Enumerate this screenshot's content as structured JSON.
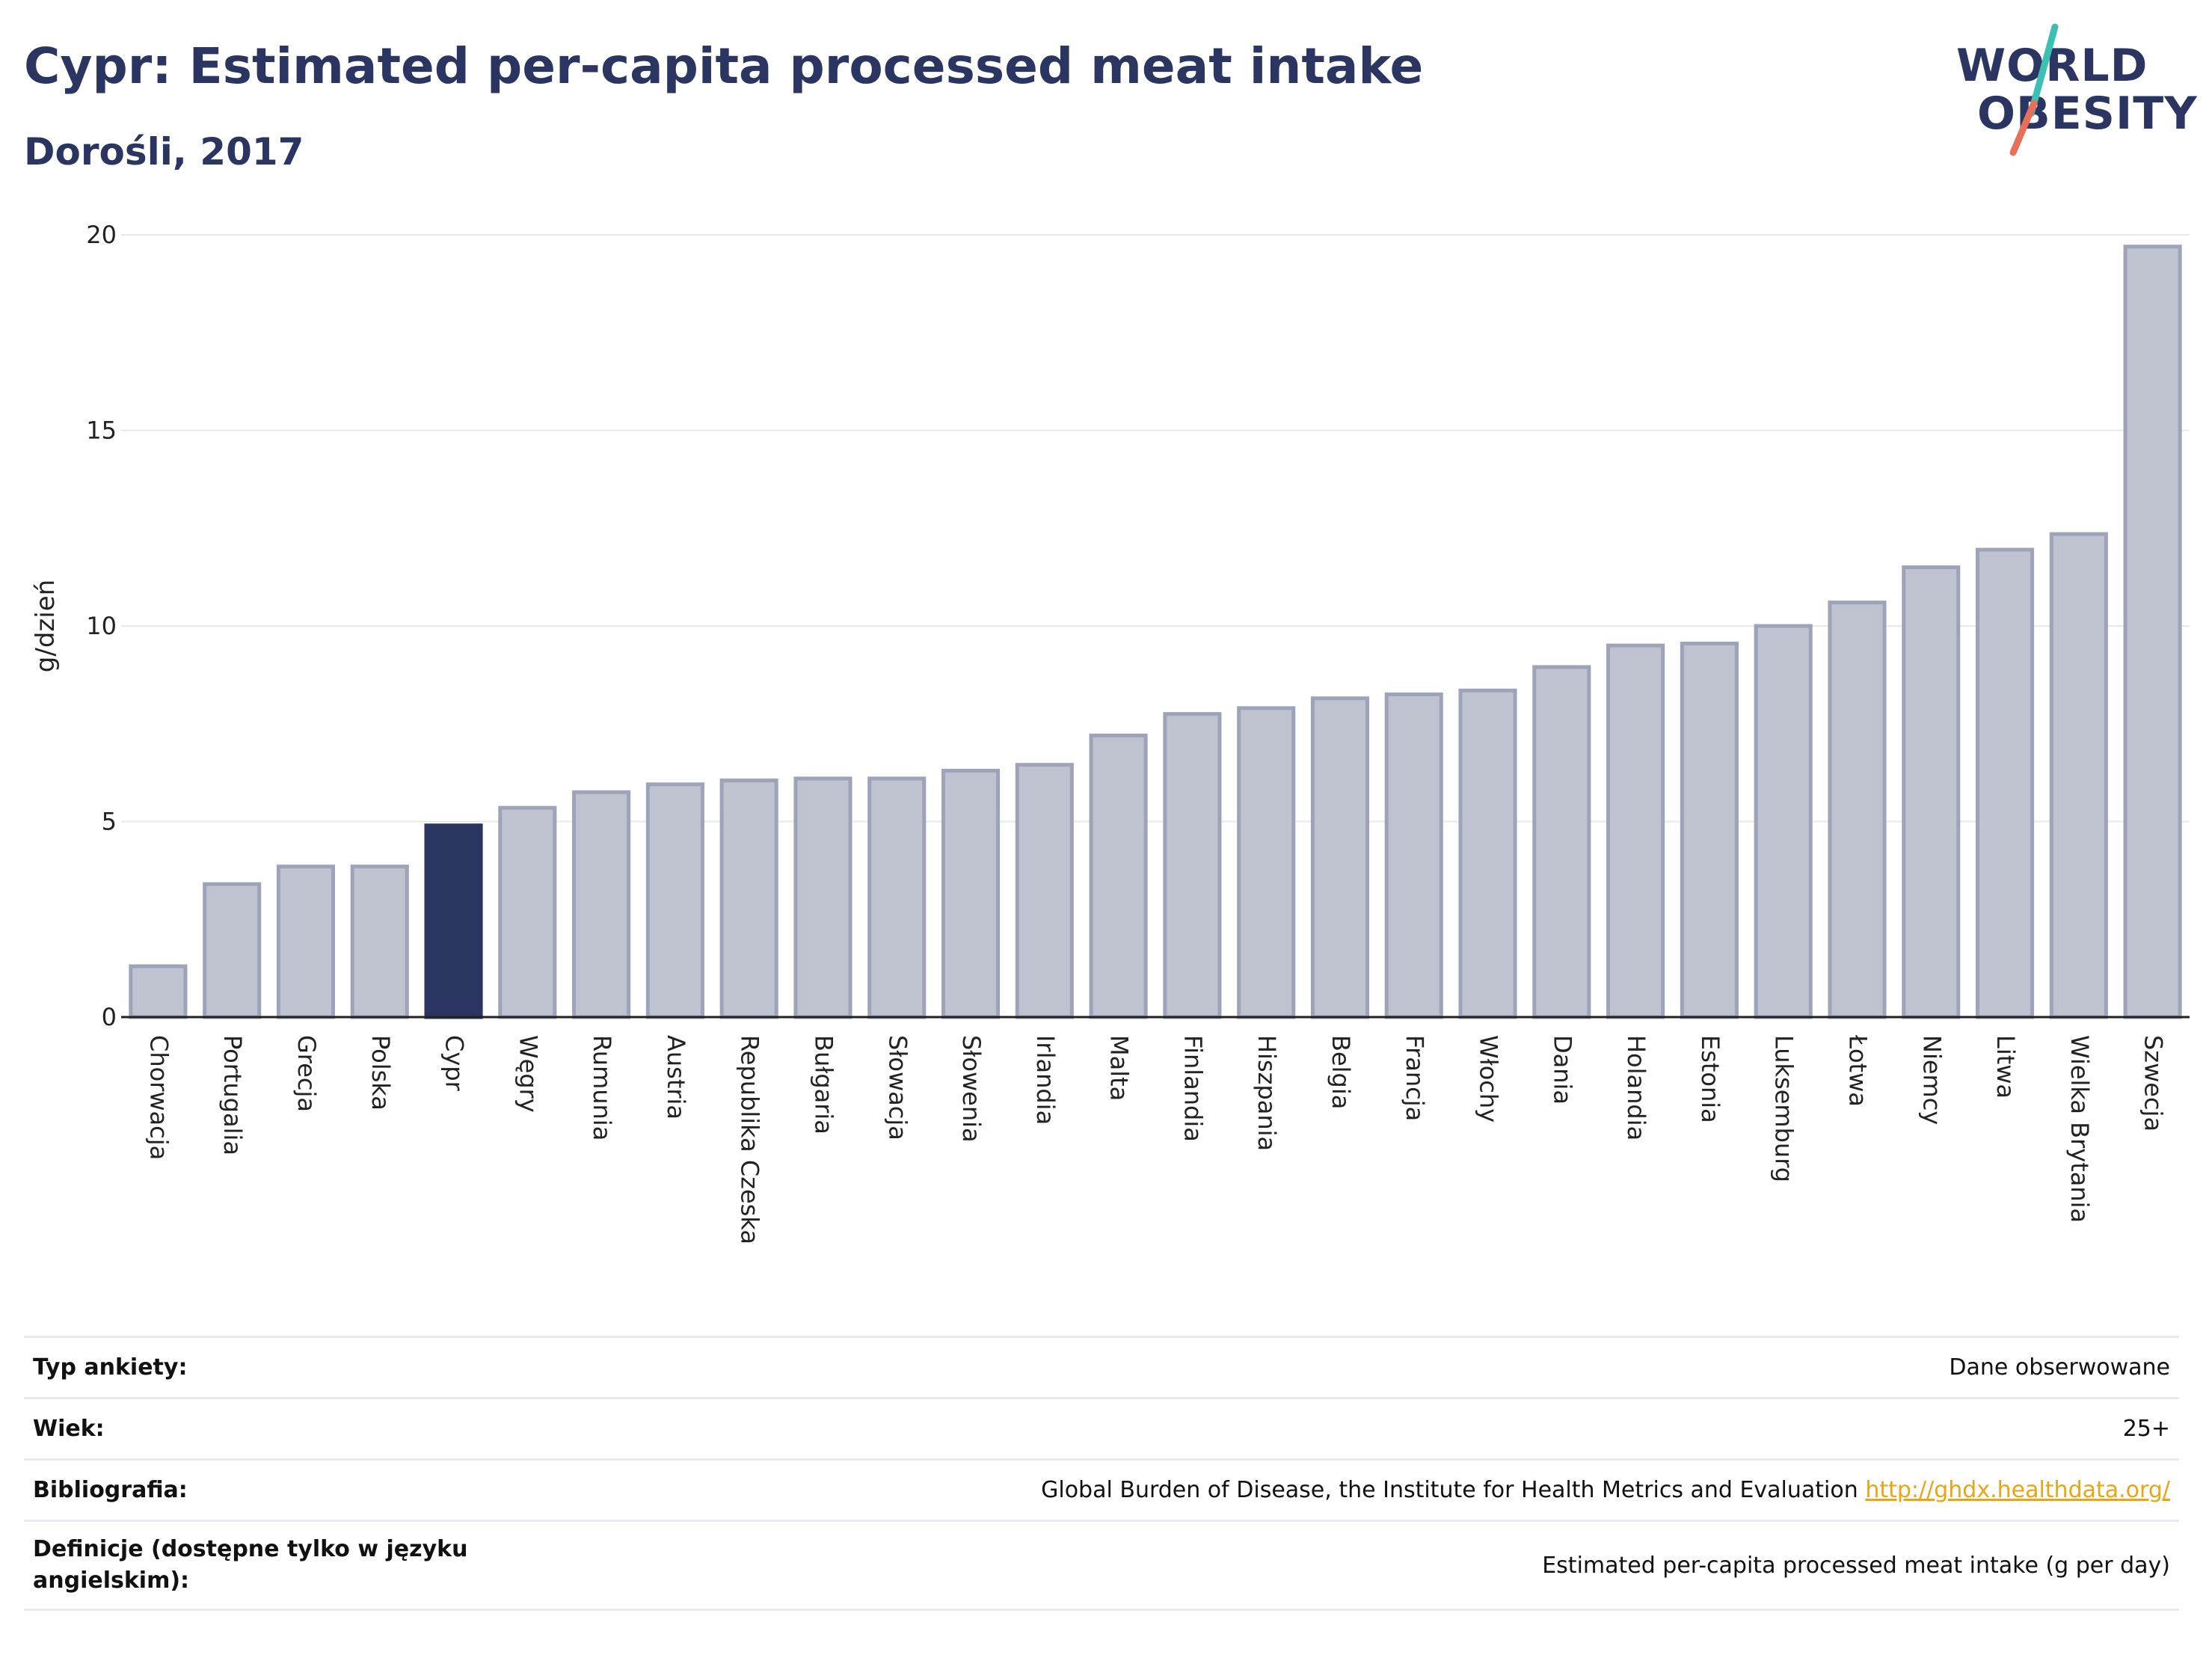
{
  "header": {
    "title": "Cypr: Estimated per-capita processed meat intake",
    "subtitle": "Dorośli, 2017"
  },
  "logo": {
    "line1": "WORLD",
    "line2": "OBESITY",
    "accent_colors": [
      "#3cc0b4",
      "#e8705a"
    ]
  },
  "colors": {
    "highlight_bar": "#2b3561",
    "bar_fill": "#bfc2cf",
    "bar_stroke": "#9da3b9",
    "text_dark": "#2b3561",
    "link": "#e8a514"
  },
  "chart_data": {
    "type": "bar",
    "title": "Cypr: Estimated per-capita processed meat intake",
    "subtitle": "Dorośli, 2017",
    "ylabel": "g/dzień",
    "xlabel": "",
    "ylim": [
      0,
      20
    ],
    "yticks": [
      0,
      5,
      10,
      15,
      20
    ],
    "grid": true,
    "highlight": "Cypr",
    "categories": [
      "Chorwacja",
      "Portugalia",
      "Grecja",
      "Polska",
      "Cypr",
      "Węgry",
      "Rumunia",
      "Austria",
      "Republika Czeska",
      "Bułgaria",
      "Słowacja",
      "Słowenia",
      "Irlandia",
      "Malta",
      "Finlandia",
      "Hiszpania",
      "Belgia",
      "Francja",
      "Włochy",
      "Dania",
      "Holandia",
      "Estonia",
      "Luksemburg",
      "Łotwa",
      "Niemcy",
      "Litwa",
      "Wielka Brytania",
      "Szwecja"
    ],
    "values": [
      1.3,
      3.4,
      3.85,
      3.85,
      4.9,
      5.35,
      5.75,
      5.95,
      6.05,
      6.1,
      6.1,
      6.3,
      6.45,
      7.2,
      7.75,
      7.9,
      8.15,
      8.25,
      8.35,
      8.95,
      9.5,
      9.55,
      10.0,
      10.6,
      11.5,
      11.95,
      12.35,
      19.7
    ]
  },
  "info": {
    "rows": [
      {
        "key": "Typ ankiety:",
        "value": "Dane obserwowane",
        "link": ""
      },
      {
        "key": "Wiek:",
        "value": "25+",
        "link": ""
      },
      {
        "key": "Bibliografia:",
        "value": "Global Burden of Disease, the Institute for Health Metrics and Evaluation",
        "link": "http://ghdx.healthdata.org/"
      },
      {
        "key": "Definicje (dostępne tylko w języku angielskim):",
        "value": "Estimated per-capita processed meat intake (g per day)",
        "link": ""
      }
    ]
  }
}
